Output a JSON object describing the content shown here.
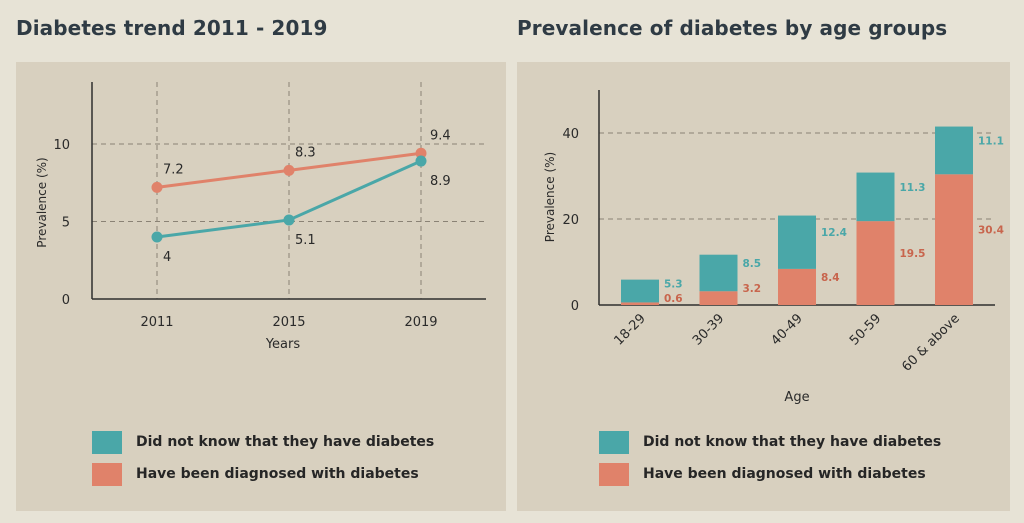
{
  "colors": {
    "teal": "#4aa7a8",
    "orange": "#e0826a",
    "grid": "#8a8275",
    "axis": "#2f2f2f"
  },
  "left_panel": {
    "title": "Diabetes trend 2011 - 2019"
  },
  "right_panel": {
    "title": "Prevalence of diabetes by age groups"
  },
  "legend": {
    "unaware": "Did not know that they have diabetes",
    "diagnosed": "Have been diagnosed with diabetes"
  },
  "chart_data": [
    {
      "type": "line",
      "title": "Diabetes trend 2011 - 2019",
      "xlabel": "Years",
      "ylabel": "Prevalence (%)",
      "x": [
        "2011",
        "2015",
        "2019"
      ],
      "yticks": [
        0,
        5,
        10
      ],
      "ylim": [
        0,
        14
      ],
      "grid": true,
      "series": [
        {
          "name": "Have been diagnosed with diabetes",
          "color": "#e0826a",
          "values": [
            7.2,
            8.3,
            9.4
          ]
        },
        {
          "name": "Did not know that they have diabetes",
          "color": "#4aa7a8",
          "values": [
            4.0,
            5.1,
            8.9
          ]
        }
      ],
      "legend": "bottom"
    },
    {
      "type": "bar",
      "stacked": true,
      "title": "Prevalence of diabetes by age groups",
      "xlabel": "Age",
      "ylabel": "Prevalence (%)",
      "categories": [
        "18-29",
        "30-39",
        "40-49",
        "50-59",
        "60 & above"
      ],
      "yticks": [
        0,
        20,
        40
      ],
      "ylim": [
        0,
        50
      ],
      "grid": true,
      "series": [
        {
          "name": "Have been diagnosed with diabetes",
          "color": "#e0826a",
          "values": [
            0.6,
            3.2,
            8.4,
            19.5,
            30.4
          ]
        },
        {
          "name": "Did not know that they have diabetes",
          "color": "#4aa7a8",
          "values": [
            5.3,
            8.5,
            12.4,
            11.3,
            11.1
          ]
        }
      ],
      "legend": "bottom"
    }
  ]
}
